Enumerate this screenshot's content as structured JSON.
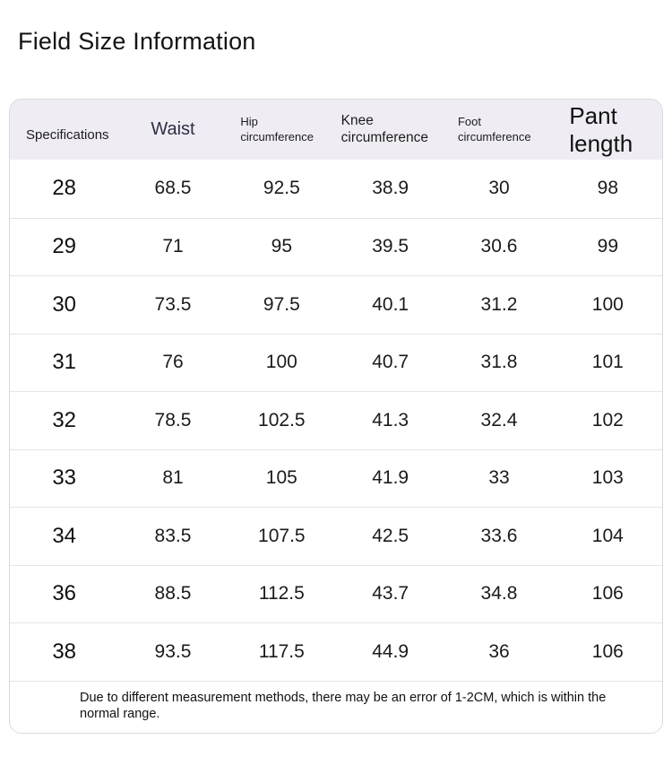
{
  "page": {
    "title": "Field Size Information"
  },
  "size_table": {
    "columns": [
      {
        "label": "Specifications"
      },
      {
        "label": "Waist"
      },
      {
        "label": "Hip circumference"
      },
      {
        "label": "Knee circumference"
      },
      {
        "label": "Foot circumference"
      },
      {
        "label": "Pant length"
      }
    ],
    "rows": [
      [
        "28",
        "68.5",
        "92.5",
        "38.9",
        "30",
        "98"
      ],
      [
        "29",
        "71",
        "95",
        "39.5",
        "30.6",
        "99"
      ],
      [
        "30",
        "73.5",
        "97.5",
        "40.1",
        "31.2",
        "100"
      ],
      [
        "31",
        "76",
        "100",
        "40.7",
        "31.8",
        "101"
      ],
      [
        "32",
        "78.5",
        "102.5",
        "41.3",
        "32.4",
        "102"
      ],
      [
        "33",
        "81",
        "105",
        "41.9",
        "33",
        "103"
      ],
      [
        "34",
        "83.5",
        "107.5",
        "42.5",
        "33.6",
        "104"
      ],
      [
        "36",
        "88.5",
        "112.5",
        "43.7",
        "34.8",
        "106"
      ],
      [
        "38",
        "93.5",
        "117.5",
        "44.9",
        "36",
        "106"
      ]
    ],
    "note": "Due to different measurement methods, there may be an error of 1-2CM, which is within the normal range."
  },
  "colors": {
    "header_bg": "#efedf3",
    "table_border": "#d9d9d9",
    "row_divider": "#e5e4e8",
    "waist_header_text": "#2e2e45",
    "body_text": "#1b1b1b"
  }
}
